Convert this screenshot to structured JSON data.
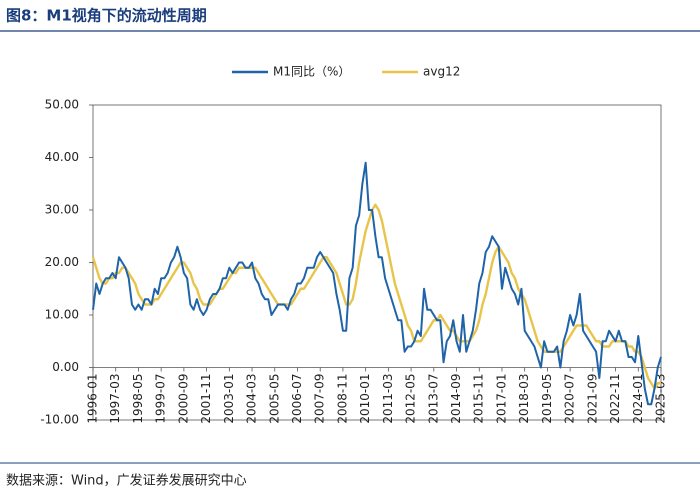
{
  "chart_data": {
    "type": "line",
    "title": "图8：M1视角下的流动性周期",
    "source": "数据来源：Wind，广发证券发展研究中心",
    "categories": [
      "1996-01",
      null,
      null,
      null,
      null,
      null,
      null,
      "1997-03",
      null,
      null,
      null,
      null,
      null,
      null,
      "1998-05",
      null,
      null,
      null,
      null,
      null,
      null,
      "1999-07",
      null,
      null,
      null,
      null,
      null,
      null,
      "2000-09",
      null,
      null,
      null,
      null,
      null,
      null,
      "2001-11",
      null,
      null,
      null,
      null,
      null,
      null,
      "2003-01",
      null,
      null,
      null,
      null,
      null,
      null,
      "2004-03",
      null,
      null,
      null,
      null,
      null,
      null,
      "2005-05",
      null,
      null,
      null,
      null,
      null,
      null,
      "2006-07",
      null,
      null,
      null,
      null,
      null,
      null,
      "2007-09",
      null,
      null,
      null,
      null,
      null,
      null,
      "2008-11",
      null,
      null,
      null,
      null,
      null,
      null,
      "2010-01",
      null,
      null,
      null,
      null,
      null,
      null,
      "2011-03",
      null,
      null,
      null,
      null,
      null,
      null,
      "2012-05",
      null,
      null,
      null,
      null,
      null,
      null,
      "2013-07",
      null,
      null,
      null,
      null,
      null,
      null,
      "2014-09",
      null,
      null,
      null,
      null,
      null,
      null,
      "2015-11",
      null,
      null,
      null,
      null,
      null,
      null,
      "2017-01",
      null,
      null,
      null,
      null,
      null,
      null,
      "2018-03",
      null,
      null,
      null,
      null,
      null,
      null,
      "2019-05",
      null,
      null,
      null,
      null,
      null,
      null,
      "2020-07",
      null,
      null,
      null,
      null,
      null,
      null,
      "2021-09",
      null,
      null,
      null,
      null,
      null,
      null,
      "2022-11",
      null,
      null,
      null,
      null,
      null,
      null,
      "2024-01",
      null,
      null,
      null,
      null,
      null,
      null,
      "2025-03"
    ],
    "series": [
      {
        "name": "M1同比（%）",
        "color": "#1f63a8",
        "values": [
          11,
          16,
          14,
          16,
          17,
          17,
          18,
          17,
          21,
          20,
          19,
          17,
          12,
          11,
          12,
          11,
          13,
          13,
          12,
          15,
          14,
          17,
          17,
          18,
          20,
          21,
          23,
          21,
          18,
          17,
          12,
          11,
          13,
          11,
          10,
          11,
          13,
          14,
          14,
          15,
          17,
          17,
          19,
          18,
          19,
          20,
          20,
          19,
          19,
          20,
          17,
          16,
          14,
          13,
          13,
          10,
          11,
          12,
          12,
          12,
          11,
          13,
          14,
          16,
          16,
          17,
          19,
          19,
          19,
          21,
          22,
          21,
          20,
          19,
          18,
          14,
          11,
          7,
          7,
          17,
          19,
          27,
          29,
          35,
          39,
          30,
          30,
          25,
          21,
          21,
          17,
          15,
          13,
          11,
          9,
          9,
          3,
          4,
          4,
          5,
          7,
          6,
          15,
          11,
          11,
          10,
          9,
          9,
          1,
          5,
          6,
          9,
          5,
          3,
          10,
          3,
          5,
          7,
          11,
          16,
          18,
          22,
          23,
          25,
          24,
          23,
          15,
          19,
          17,
          15,
          14,
          12,
          15,
          7,
          6,
          5,
          4,
          2,
          0,
          5,
          3,
          3,
          3,
          4,
          0,
          5,
          7,
          10,
          8,
          10,
          14,
          7,
          6,
          5,
          4,
          3,
          -2,
          5,
          5,
          7,
          6,
          5,
          7,
          5,
          5,
          2,
          2,
          1,
          6,
          1,
          -4,
          -7,
          -7,
          -4,
          0,
          2
        ]
      },
      {
        "name": "avg12",
        "color": "#e8c54a",
        "values": [
          21,
          19,
          17,
          16,
          16,
          17,
          17,
          18,
          18,
          19,
          19,
          18,
          17,
          16,
          14,
          13,
          12,
          12,
          12,
          13,
          13,
          14,
          15,
          16,
          17,
          18,
          19,
          20,
          20,
          19,
          18,
          16,
          15,
          13,
          12,
          12,
          12,
          13,
          14,
          15,
          15,
          16,
          17,
          18,
          18,
          19,
          19,
          19,
          19,
          19,
          19,
          18,
          17,
          16,
          15,
          14,
          13,
          12,
          12,
          12,
          12,
          12,
          13,
          14,
          15,
          15,
          16,
          17,
          18,
          19,
          20,
          21,
          21,
          20,
          19,
          18,
          16,
          14,
          12,
          12,
          13,
          16,
          20,
          23,
          26,
          28,
          30,
          31,
          30,
          28,
          25,
          22,
          19,
          16,
          14,
          12,
          10,
          8,
          7,
          5,
          5,
          5,
          6,
          7,
          8,
          9,
          9,
          10,
          9,
          8,
          7,
          7,
          6,
          5,
          5,
          5,
          5,
          6,
          7,
          9,
          12,
          14,
          17,
          20,
          22,
          23,
          22,
          21,
          20,
          18,
          17,
          15,
          14,
          13,
          11,
          9,
          7,
          5,
          4,
          3,
          3,
          3,
          3,
          3,
          3,
          4,
          5,
          6,
          7,
          8,
          8,
          8,
          8,
          7,
          6,
          5,
          5,
          4,
          4,
          4,
          5,
          5,
          5,
          5,
          5,
          4,
          4,
          3,
          3,
          2,
          0,
          -2,
          -3,
          -4,
          -3,
          -3
        ]
      }
    ],
    "ylim": [
      -10,
      50
    ],
    "yticks": [
      {
        "value": -10,
        "label": "-10.00"
      },
      {
        "value": 0,
        "label": "0.00"
      },
      {
        "value": 10,
        "label": "10.00"
      },
      {
        "value": 20,
        "label": "20.00"
      },
      {
        "value": 30,
        "label": "30.00"
      },
      {
        "value": 40,
        "label": "40.00"
      },
      {
        "value": 50,
        "label": "50.00"
      }
    ],
    "legend": "top"
  }
}
